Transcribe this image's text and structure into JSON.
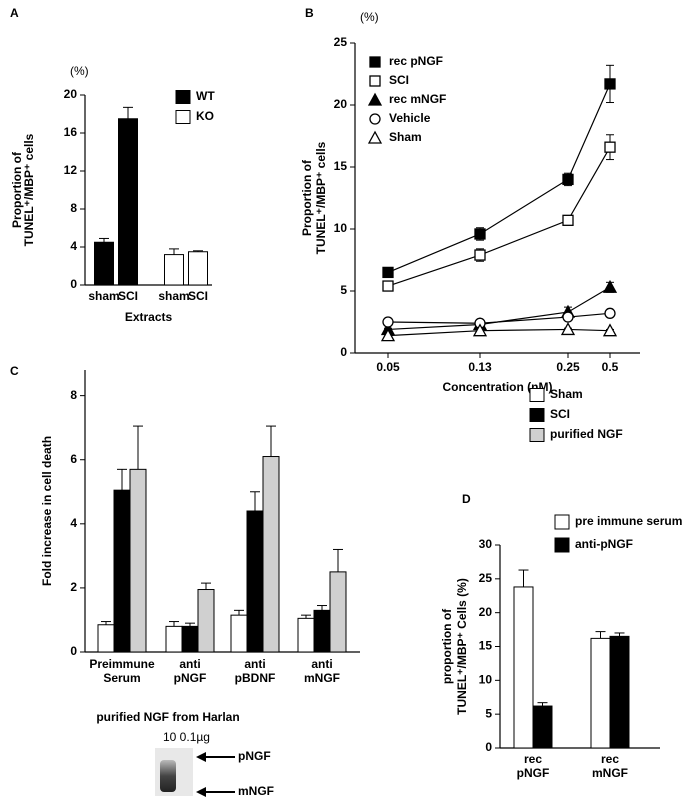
{
  "chart_data": [
    {
      "type": "bar",
      "label": "A",
      "y_unit": "(%)",
      "ylabel": [
        "Proportion of",
        "TUNEL⁺/MBP⁺ cells"
      ],
      "xlabel": "Extracts",
      "categories": [
        "sham",
        "SCI",
        "sham",
        "SCI"
      ],
      "series": [
        {
          "name": "WT",
          "color": "#000000",
          "values": [
            4.5,
            17.5,
            null,
            null
          ],
          "errors": [
            0.4,
            1.2,
            null,
            null
          ]
        },
        {
          "name": "KO",
          "color": "#ffffff",
          "values": [
            null,
            null,
            3.2,
            3.5
          ],
          "errors": [
            null,
            null,
            0.6,
            0.1
          ]
        }
      ],
      "ylim": [
        0,
        20
      ],
      "yticks": [
        0,
        4,
        8,
        12,
        16,
        20
      ]
    },
    {
      "type": "line",
      "label": "B",
      "y_unit": "(%)",
      "ylabel": [
        "Proportion of",
        "TUNEL⁺/MBP⁺ cells"
      ],
      "xlabel": "Concentration (nM)",
      "categories": [
        "0.05",
        "0.13",
        "0.25",
        "0.5"
      ],
      "series": [
        {
          "name": "rec pNGF",
          "marker": "square",
          "filled": true,
          "values": [
            6.5,
            9.6,
            14,
            21.7
          ],
          "errors": [
            0.3,
            0.5,
            0.5,
            1.5
          ]
        },
        {
          "name": "SCI",
          "marker": "square",
          "filled": false,
          "values": [
            5.4,
            7.9,
            10.7,
            16.6
          ],
          "errors": [
            0.2,
            0.5,
            0.2,
            1
          ]
        },
        {
          "name": "rec mNGF",
          "marker": "triangle",
          "filled": true,
          "values": [
            1.9,
            2.3,
            3.3,
            5.3
          ],
          "errors": [
            0.1,
            0.1,
            0.4,
            0.4
          ]
        },
        {
          "name": "Vehicle",
          "marker": "circle",
          "filled": false,
          "values": [
            2.5,
            2.4,
            2.9,
            3.2
          ],
          "errors": [
            0.1,
            0.1,
            0.2,
            0.1
          ]
        },
        {
          "name": "Sham",
          "marker": "triangle",
          "filled": false,
          "values": [
            1.4,
            1.8,
            1.9,
            1.8
          ],
          "errors": [
            0.1,
            0.1,
            0.1,
            0.1
          ]
        }
      ],
      "ylim": [
        0,
        25
      ],
      "yticks": [
        0,
        5,
        10,
        15,
        20,
        25
      ]
    },
    {
      "type": "bar",
      "label": "C",
      "ylabel": [
        "Fold increase in cell death"
      ],
      "categories": [
        [
          "Preimmune",
          "Serum"
        ],
        [
          "anti",
          "pNGF"
        ],
        [
          "anti",
          "pBDNF"
        ],
        [
          "anti",
          "mNGF"
        ]
      ],
      "series": [
        {
          "name": "Sham",
          "color": "#ffffff",
          "values": [
            0.85,
            0.8,
            1.15,
            1.05
          ],
          "errors": [
            0.1,
            0.15,
            0.15,
            0.1
          ]
        },
        {
          "name": "SCI",
          "color": "#000000",
          "values": [
            5.05,
            0.8,
            4.4,
            1.3
          ],
          "errors": [
            0.65,
            0.1,
            0.6,
            0.15
          ]
        },
        {
          "name": "purified NGF",
          "color": "#d0d0d0",
          "values": [
            5.7,
            1.95,
            6.1,
            2.5
          ],
          "errors": [
            1.35,
            0.2,
            0.95,
            0.7
          ]
        }
      ],
      "ylim": [
        0,
        8.8
      ],
      "yticks": [
        0,
        2,
        4,
        6,
        8
      ]
    },
    {
      "type": "bar",
      "label": "D",
      "ylabel": [
        "proportion of",
        "TUNEL⁺/MBP⁺ Cells (%)"
      ],
      "categories": [
        [
          "rec",
          "pNGF"
        ],
        [
          "rec",
          "mNGF"
        ]
      ],
      "series": [
        {
          "name": "pre immune serum",
          "color": "#ffffff",
          "values": [
            23.8,
            16.2
          ],
          "errors": [
            2.5,
            1
          ]
        },
        {
          "name": "anti-pNGF",
          "color": "#000000",
          "values": [
            6.2,
            16.5
          ],
          "errors": [
            0.5,
            0.5
          ]
        }
      ],
      "ylim": [
        0,
        30
      ],
      "yticks": [
        0,
        5,
        10,
        15,
        20,
        25,
        30
      ]
    }
  ],
  "blot": {
    "title": "purified NGF from Harlan",
    "lanes": "10 0.1µg",
    "bands": [
      "pNGF",
      "mNGF"
    ]
  }
}
